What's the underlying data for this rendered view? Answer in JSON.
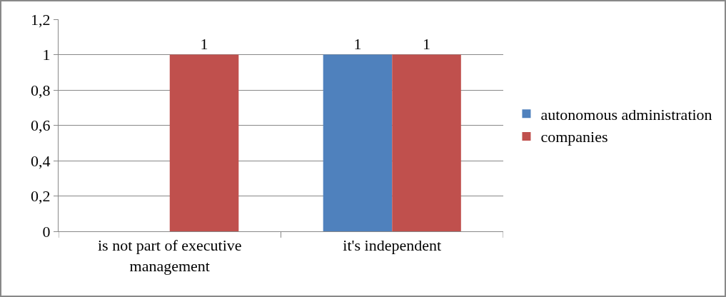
{
  "chart_data": {
    "type": "bar",
    "categories": [
      "is not part of executive management",
      "it's independent"
    ],
    "series": [
      {
        "name": "autonomous administration",
        "color": "#4f81bd",
        "values": [
          null,
          1
        ]
      },
      {
        "name": "companies",
        "color": "#c0504d",
        "values": [
          1,
          1
        ]
      }
    ],
    "ylim": [
      0,
      1.2
    ],
    "yticks": [
      0,
      {
        "value": 0.2,
        "label": "0,2"
      },
      {
        "value": 0.4,
        "label": "0,4"
      },
      {
        "value": 0.6,
        "label": "0,6"
      },
      {
        "value": 0.8,
        "label": "0,8"
      },
      1,
      {
        "value": 1.2,
        "label": "1,2"
      }
    ],
    "grid": "y",
    "legend": "right",
    "data_labels": true
  }
}
